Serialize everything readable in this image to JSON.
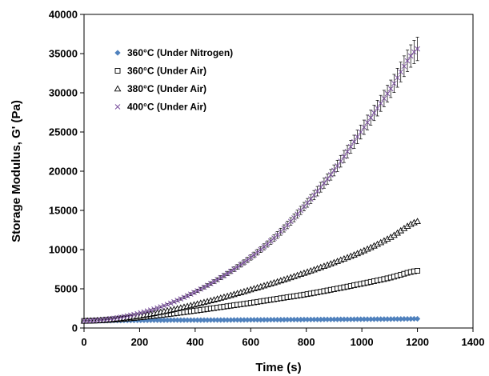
{
  "chart_data": {
    "type": "scatter",
    "title": "",
    "xlabel": "Time (s)",
    "ylabel": "Storage Modulus, G' (Pa)",
    "xlim": [
      0,
      1400
    ],
    "ylim": [
      0,
      40000
    ],
    "xticks": [
      "0",
      "200",
      "400",
      "600",
      "800",
      "1000",
      "1200",
      "1400"
    ],
    "yticks": [
      "0",
      "5000",
      "10000",
      "15000",
      "20000",
      "25000",
      "30000",
      "35000",
      "40000"
    ],
    "grid": false,
    "legend_position": "top-left",
    "series": [
      {
        "name": "360°C (Under Nitrogen)",
        "marker": "diamond-filled",
        "color": "#4f81bd",
        "x": [
          0,
          100,
          200,
          300,
          400,
          500,
          600,
          700,
          800,
          900,
          1000,
          1100,
          1200
        ],
        "y": [
          900,
          950,
          980,
          1000,
          1010,
          1020,
          1040,
          1060,
          1080,
          1100,
          1120,
          1140,
          1170
        ]
      },
      {
        "name": "360°C (Under Air)",
        "marker": "square-open",
        "color": "#000000",
        "x": [
          0,
          100,
          200,
          300,
          400,
          500,
          600,
          700,
          800,
          900,
          1000,
          1100,
          1200
        ],
        "y": [
          900,
          1050,
          1350,
          1750,
          2200,
          2700,
          3200,
          3750,
          4300,
          4950,
          5650,
          6400,
          7300
        ]
      },
      {
        "name": "380°C (Under Air)",
        "marker": "triangle-open",
        "color": "#000000",
        "x": [
          0,
          100,
          200,
          300,
          400,
          500,
          600,
          700,
          800,
          900,
          1000,
          1100,
          1200
        ],
        "y": [
          900,
          1100,
          1550,
          2200,
          3000,
          3900,
          4900,
          5950,
          7100,
          8350,
          9750,
          11500,
          13600
        ]
      },
      {
        "name": "400°C (Under Air)",
        "marker": "x",
        "color": "#7a4f9e",
        "x": [
          0,
          100,
          200,
          300,
          400,
          500,
          600,
          700,
          800,
          900,
          1000,
          1100,
          1200
        ],
        "y": [
          900,
          1200,
          1900,
          3000,
          4600,
          6600,
          9000,
          12000,
          15800,
          20100,
          25200,
          30300,
          35600
        ],
        "error": [
          0,
          50,
          80,
          120,
          200,
          260,
          340,
          440,
          550,
          700,
          900,
          1100,
          1500
        ]
      }
    ]
  }
}
